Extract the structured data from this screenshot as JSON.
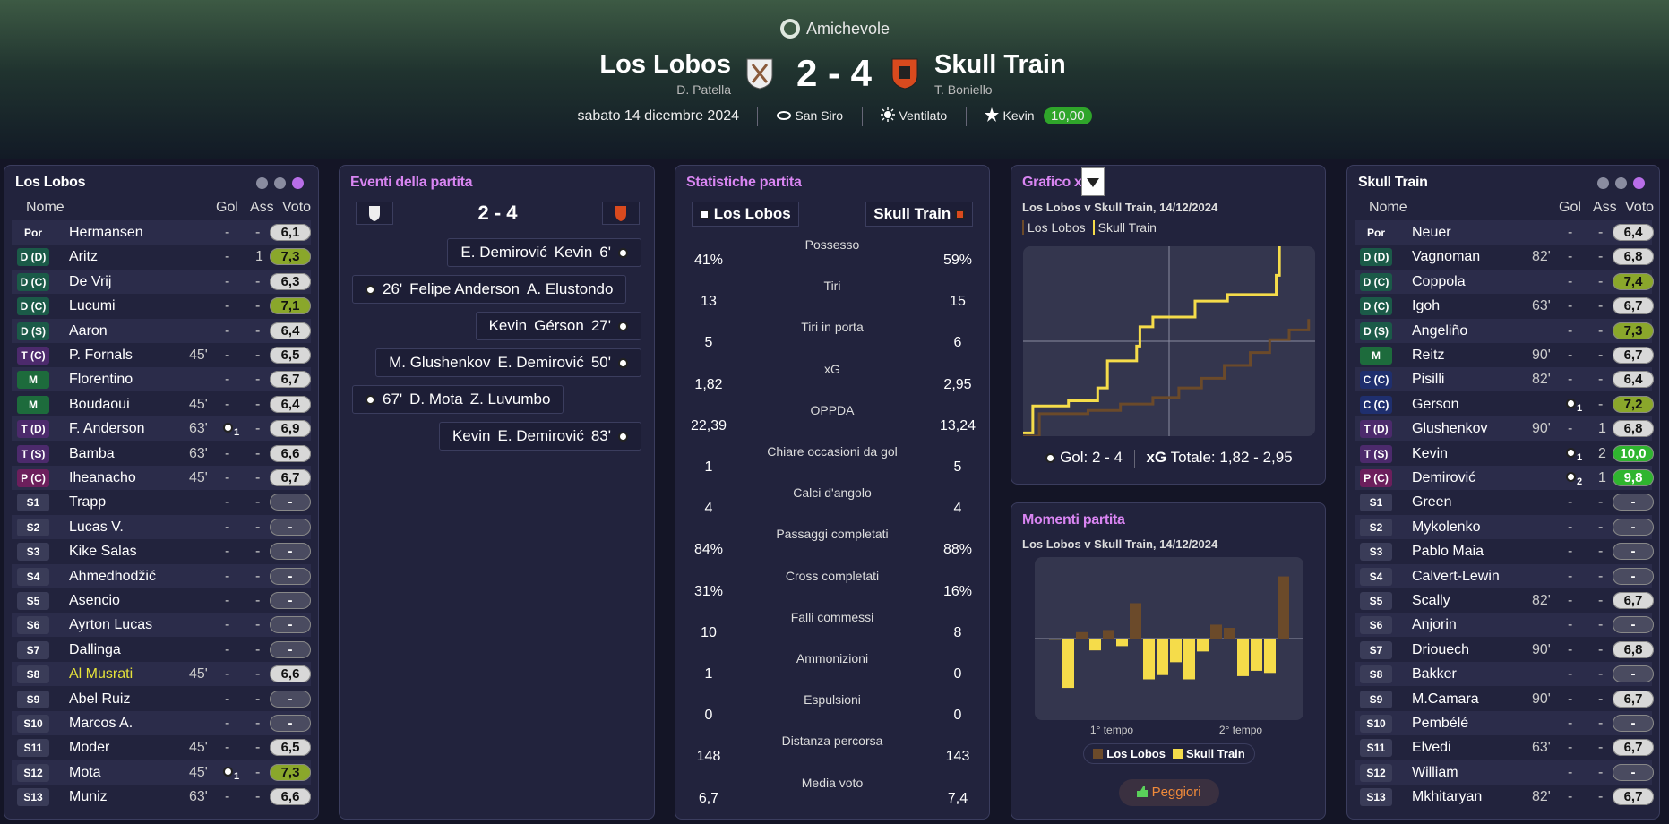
{
  "header": {
    "competition": "Amichevole",
    "home_team": "Los Lobos",
    "home_manager": "D. Patella",
    "score": "2 - 4",
    "away_team": "Skull Train",
    "away_manager": "T. Boniello",
    "date": "sabato 14 dicembre 2024",
    "stadium": "San Siro",
    "weather": "Ventilato",
    "motm": "Kevin",
    "motm_rating": "10,00"
  },
  "home_lineup": {
    "title": "Los Lobos",
    "columns": [
      "Nome",
      "Gol",
      "Ass",
      "Voto"
    ],
    "players": [
      {
        "pos": "Por",
        "name": "Hermansen",
        "goals": "-",
        "assists": "-",
        "rating": "6,1"
      },
      {
        "pos": "D (D)",
        "name": "Aritz",
        "goals": "-",
        "assists": 1,
        "rating": "7,3"
      },
      {
        "pos": "D (C)",
        "name": "De Vrij",
        "goals": "-",
        "assists": "-",
        "rating": "6,3"
      },
      {
        "pos": "D (C)",
        "name": "Lucumi",
        "goals": "-",
        "assists": "-",
        "rating": "7,1"
      },
      {
        "pos": "D (S)",
        "name": "Aaron",
        "goals": "-",
        "assists": "-",
        "rating": "6,4"
      },
      {
        "pos": "T (C)",
        "name": "P. Fornals",
        "sub": "45'",
        "goals": "-",
        "assists": "-",
        "rating": "6,5"
      },
      {
        "pos": "M",
        "name": "Florentino",
        "goals": "-",
        "assists": "-",
        "rating": "6,7"
      },
      {
        "pos": "M",
        "name": "Boudaoui",
        "sub": "45'",
        "goals": "-",
        "assists": "-",
        "rating": "6,4"
      },
      {
        "pos": "T (D)",
        "name": "F. Anderson",
        "sub": "63'",
        "goals": 1,
        "assists": "-",
        "rating": "6,9"
      },
      {
        "pos": "T (S)",
        "name": "Bamba",
        "sub": "63'",
        "goals": "-",
        "assists": "-",
        "rating": "6,6"
      },
      {
        "pos": "P (C)",
        "name": "Iheanacho",
        "sub": "45'",
        "goals": "-",
        "assists": "-",
        "rating": "6,7"
      },
      {
        "pos": "S1",
        "name": "Trapp",
        "goals": "-",
        "assists": "-",
        "rating": "-"
      },
      {
        "pos": "S2",
        "name": "Lucas V.",
        "goals": "-",
        "assists": "-",
        "rating": "-"
      },
      {
        "pos": "S3",
        "name": "Kike Salas",
        "goals": "-",
        "assists": "-",
        "rating": "-"
      },
      {
        "pos": "S4",
        "name": "Ahmedhodžić",
        "goals": "-",
        "assists": "-",
        "rating": "-"
      },
      {
        "pos": "S5",
        "name": "Asencio",
        "goals": "-",
        "assists": "-",
        "rating": "-"
      },
      {
        "pos": "S6",
        "name": "Ayrton Lucas",
        "goals": "-",
        "assists": "-",
        "rating": "-"
      },
      {
        "pos": "S7",
        "name": "Dallinga",
        "goals": "-",
        "assists": "-",
        "rating": "-"
      },
      {
        "pos": "S8",
        "name": "Al Musrati",
        "name_color": "#e6e23a",
        "sub": "45'",
        "goals": "-",
        "assists": "-",
        "rating": "6,6"
      },
      {
        "pos": "S9",
        "name": "Abel Ruiz",
        "goals": "-",
        "assists": "-",
        "rating": "-"
      },
      {
        "pos": "S10",
        "name": "Marcos A.",
        "goals": "-",
        "assists": "-",
        "rating": "-"
      },
      {
        "pos": "S11",
        "name": "Moder",
        "sub": "45'",
        "goals": "-",
        "assists": "-",
        "rating": "6,5"
      },
      {
        "pos": "S12",
        "name": "Mota",
        "sub": "45'",
        "goals": 1,
        "assists": "-",
        "rating": "7,3"
      },
      {
        "pos": "S13",
        "name": "Muniz",
        "sub": "63'",
        "goals": "-",
        "assists": "-",
        "rating": "6,6"
      }
    ]
  },
  "away_lineup": {
    "title": "Skull Train",
    "columns": [
      "Nome",
      "Gol",
      "Ass",
      "Voto"
    ],
    "players": [
      {
        "pos": "Por",
        "name": "Neuer",
        "goals": "-",
        "assists": "-",
        "rating": "6,4"
      },
      {
        "pos": "D (D)",
        "name": "Vagnoman",
        "sub": "82'",
        "goals": "-",
        "assists": "-",
        "rating": "6,8"
      },
      {
        "pos": "D (C)",
        "name": "Coppola",
        "goals": "-",
        "assists": "-",
        "rating": "7,4"
      },
      {
        "pos": "D (C)",
        "name": "Igoh",
        "sub": "63'",
        "goals": "-",
        "assists": "-",
        "rating": "6,7"
      },
      {
        "pos": "D (S)",
        "name": "Angeliño",
        "goals": "-",
        "assists": "-",
        "rating": "7,3"
      },
      {
        "pos": "M",
        "name": "Reitz",
        "sub": "90'",
        "goals": "-",
        "assists": "-",
        "rating": "6,7"
      },
      {
        "pos": "C (C)",
        "name": "Pisilli",
        "sub": "82'",
        "goals": "-",
        "assists": "-",
        "rating": "6,4"
      },
      {
        "pos": "C (C)",
        "name": "Gerson",
        "goals": 1,
        "assists": "-",
        "rating": "7,2"
      },
      {
        "pos": "T (D)",
        "name": "Glushenkov",
        "sub": "90'",
        "goals": "-",
        "assists": 1,
        "rating": "6,8"
      },
      {
        "pos": "T (S)",
        "name": "Kevin",
        "goals": 1,
        "assists": 2,
        "rating": "10,0"
      },
      {
        "pos": "P (C)",
        "name": "Demirović",
        "goals": 2,
        "assists": 1,
        "rating": "9,8"
      },
      {
        "pos": "S1",
        "name": "Green",
        "goals": "-",
        "assists": "-",
        "rating": "-"
      },
      {
        "pos": "S2",
        "name": "Mykolenko",
        "goals": "-",
        "assists": "-",
        "rating": "-"
      },
      {
        "pos": "S3",
        "name": "Pablo Maia",
        "goals": "-",
        "assists": "-",
        "rating": "-"
      },
      {
        "pos": "S4",
        "name": "Calvert-Lewin",
        "goals": "-",
        "assists": "-",
        "rating": "-"
      },
      {
        "pos": "S5",
        "name": "Scally",
        "sub": "82'",
        "goals": "-",
        "assists": "-",
        "rating": "6,7"
      },
      {
        "pos": "S6",
        "name": "Anjorin",
        "goals": "-",
        "assists": "-",
        "rating": "-"
      },
      {
        "pos": "S7",
        "name": "Driouech",
        "sub": "90'",
        "goals": "-",
        "assists": "-",
        "rating": "6,8"
      },
      {
        "pos": "S8",
        "name": "Bakker",
        "goals": "-",
        "assists": "-",
        "rating": "-"
      },
      {
        "pos": "S9",
        "name": "M.Camara",
        "sub": "90'",
        "goals": "-",
        "assists": "-",
        "rating": "6,7"
      },
      {
        "pos": "S10",
        "name": "Pembélé",
        "goals": "-",
        "assists": "-",
        "rating": "-"
      },
      {
        "pos": "S11",
        "name": "Elvedi",
        "sub": "63'",
        "goals": "-",
        "assists": "-",
        "rating": "6,7"
      },
      {
        "pos": "S12",
        "name": "William",
        "goals": "-",
        "assists": "-",
        "rating": "-"
      },
      {
        "pos": "S13",
        "name": "Mkhitaryan",
        "sub": "82'",
        "goals": "-",
        "assists": "-",
        "rating": "6,7"
      }
    ]
  },
  "events": {
    "title": "Eventi della partita",
    "score": "2 - 4",
    "items": [
      {
        "side": "away",
        "parts": [
          "E. Demirović",
          "Kevin",
          "6'"
        ]
      },
      {
        "side": "home",
        "parts": [
          "26'",
          "Felipe Anderson",
          "A. Elustondo"
        ]
      },
      {
        "side": "away",
        "parts": [
          "Kevin",
          "Gérson",
          "27'"
        ]
      },
      {
        "side": "away",
        "parts": [
          "M. Glushenkov",
          "E. Demirović",
          "50'"
        ]
      },
      {
        "side": "home",
        "parts": [
          "67'",
          "D. Mota",
          "Z. Luvumbo"
        ]
      },
      {
        "side": "away",
        "parts": [
          "Kevin",
          "E. Demirović",
          "83'"
        ]
      }
    ]
  },
  "stats": {
    "title": "Statistiche partita",
    "home": "Los Lobos",
    "away": "Skull Train",
    "home_color": "#6b4a2a",
    "away_color": "#f5dc4a",
    "rows": [
      {
        "label": "Possesso",
        "home": {
          "value": 41,
          "label": "41%"
        },
        "away": {
          "value": 59,
          "label": "59%"
        }
      },
      {
        "label": "Tiri",
        "home": 13,
        "away": 15
      },
      {
        "label": "Tiri in porta",
        "home": 5,
        "away": 6
      },
      {
        "label": "xG",
        "home": {
          "value": 1.82,
          "label": "1,82"
        },
        "away": {
          "value": 2.95,
          "label": "2,95"
        }
      },
      {
        "label": "OPPDA",
        "home": {
          "value": 22.39,
          "label": "22,39"
        },
        "away": {
          "value": 13.24,
          "label": "13,24"
        }
      },
      {
        "label": "Chiare occasioni da gol",
        "home": 1,
        "away": 5
      },
      {
        "label": "Calci d'angolo",
        "home": 4,
        "away": 4
      },
      {
        "label": "Passaggi completati",
        "home": {
          "value": 84,
          "label": "84%"
        },
        "away": {
          "value": 88,
          "label": "88%"
        }
      },
      {
        "label": "Cross completati",
        "home": {
          "value": 31,
          "label": "31%"
        },
        "away": {
          "value": 16,
          "label": "16%"
        }
      },
      {
        "label": "Falli commessi",
        "home": 10,
        "away": 8
      },
      {
        "label": "Ammonizioni",
        "home": 1,
        "away": 0
      },
      {
        "label": "Espulsioni",
        "home": 0,
        "away": 0
      },
      {
        "label": "Distanza percorsa",
        "home": 148,
        "away": 143
      },
      {
        "label": "Media voto",
        "home": {
          "value": 6.7,
          "label": "6,7"
        },
        "away": {
          "value": 7.4,
          "label": "7,4"
        }
      }
    ]
  },
  "xg_chart": {
    "type": "line",
    "step": true,
    "title": "Grafico xG",
    "subtitle": "Los Lobos v Skull Train, 14/12/2024",
    "xlim": [
      0,
      90
    ],
    "ylim": [
      0,
      2.95
    ],
    "series": [
      {
        "name": "Los Lobos",
        "color": "#6b4a2a",
        "x": [
          0,
          5,
          20,
          30,
          40,
          48,
          55,
          62,
          70,
          76,
          82,
          88
        ],
        "values": [
          0,
          0.35,
          0.4,
          0.5,
          0.6,
          0.75,
          0.9,
          1.1,
          1.3,
          1.5,
          1.65,
          1.82
        ]
      },
      {
        "name": "Skull Train",
        "color": "#f5dc4a",
        "x": [
          0,
          3,
          14,
          23,
          26,
          35,
          36,
          40,
          53,
          63,
          78,
          79
        ],
        "values": [
          0.05,
          0.47,
          0.55,
          0.75,
          1.17,
          1.4,
          1.7,
          1.85,
          2.1,
          2.2,
          2.5,
          2.95
        ]
      }
    ],
    "footer": {
      "goals": "Gol: 2 - 4",
      "xg_label": "xG",
      "totals": "Totale: 1,82 - 2,95"
    }
  },
  "moments_chart": {
    "type": "bar",
    "title": "Momenti partita",
    "subtitle": "Los Lobos v Skull Train, 14/12/2024",
    "ylim": [
      -76,
      76
    ],
    "values": [
      -1,
      -46,
      6,
      -11,
      8,
      -7,
      33,
      -38,
      -34,
      -22,
      -38,
      -12,
      13,
      10,
      -35,
      -30,
      -32,
      58
    ],
    "x_labels": [
      "1° tempo",
      "2° tempo"
    ],
    "legend": [
      {
        "name": "Los Lobos",
        "color": "#6b4a2a"
      },
      {
        "name": "Skull Train",
        "color": "#f5dc4a"
      }
    ],
    "button": "Peggiori"
  }
}
